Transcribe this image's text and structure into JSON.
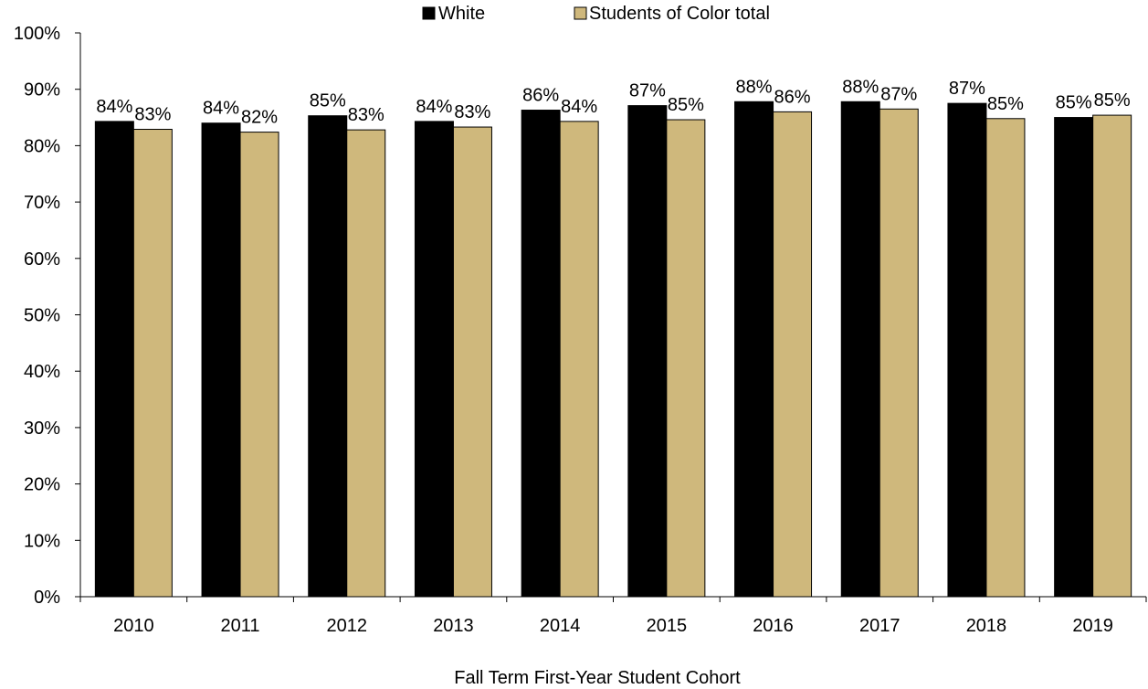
{
  "chart_data": {
    "type": "bar",
    "categories": [
      "2010",
      "2011",
      "2012",
      "2013",
      "2014",
      "2015",
      "2016",
      "2017",
      "2018",
      "2019"
    ],
    "series": [
      {
        "name": "White",
        "color": "#000000",
        "values": [
          84.3,
          84.0,
          85.3,
          84.3,
          86.3,
          87.1,
          87.8,
          87.8,
          87.5,
          85.0
        ],
        "labels": [
          "84%",
          "84%",
          "85%",
          "84%",
          "86%",
          "87%",
          "88%",
          "88%",
          "87%",
          "85%"
        ]
      },
      {
        "name": "Students of Color total",
        "color": "#CFB87C",
        "values": [
          82.9,
          82.4,
          82.8,
          83.3,
          84.3,
          84.6,
          86.0,
          86.5,
          84.8,
          85.4
        ],
        "labels": [
          "83%",
          "82%",
          "83%",
          "83%",
          "84%",
          "85%",
          "86%",
          "87%",
          "85%",
          "85%"
        ]
      }
    ],
    "xlabel": "Fall Term First-Year Student Cohort",
    "ylabel": "",
    "ylim": [
      0,
      100
    ],
    "yticks": [
      "0%",
      "10%",
      "20%",
      "30%",
      "40%",
      "50%",
      "60%",
      "70%",
      "80%",
      "90%",
      "100%"
    ],
    "grid": false,
    "legend_position": "top-center"
  }
}
